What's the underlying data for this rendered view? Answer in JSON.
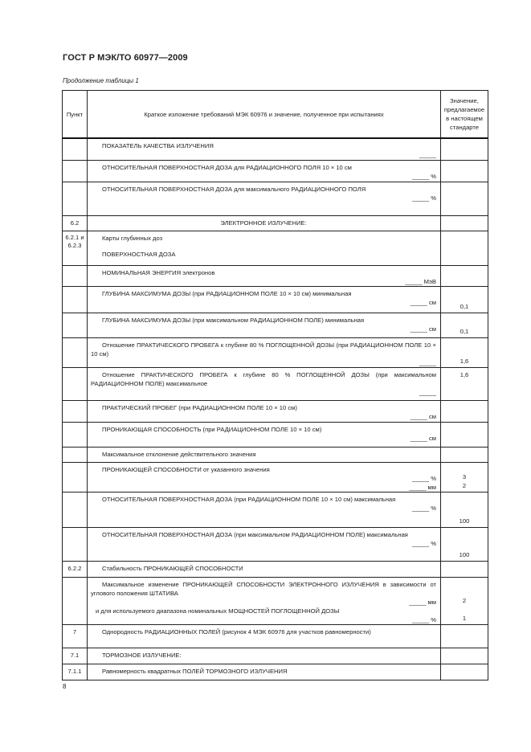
{
  "header": {
    "title": "ГОСТ Р МЭК/ТО 60977—2009",
    "caption": "Продолжение таблицы 1"
  },
  "table": {
    "columns": [
      "Пункт",
      "Краткое изложение требований МЭК 60976 и значение, полученное при испытаниях",
      "Значение, предлагаемое в настоящем стандарте"
    ],
    "rows": [
      {
        "punkt": "",
        "text": [
          "ПОКАЗАТЕЛЬ КАЧЕСТВА ИЗЛУЧЕНИЯ"
        ],
        "blanks": [
          "_____"
        ],
        "values": []
      },
      {
        "punkt": "",
        "text": [
          "ОТНОСИТЕЛЬНАЯ ПОВЕРХНОСТНАЯ ДОЗА для РАДИАЦИОННОГО ПОЛЯ 10 × 10 см"
        ],
        "blanks": [
          "_____ %"
        ],
        "values": []
      },
      {
        "punkt": "",
        "text": [
          "ОТНОСИТЕЛЬНАЯ ПОВЕРХНОСТНАЯ ДОЗА для максимального РАДИАЦИОННОГО ПОЛЯ"
        ],
        "blanks": [
          "_____ %"
        ],
        "values": []
      },
      {
        "punkt": "6.2",
        "text": [
          "ЭЛЕКТРОННОЕ ИЗЛУЧЕНИЕ:"
        ],
        "center": true,
        "blanks": [],
        "values": []
      },
      {
        "punkt": "6.2.1 и 6.2.3",
        "text": [
          "Карты глубинных доз",
          "ПОВЕРХНОСТНАЯ ДОЗА"
        ],
        "blanks": [],
        "values": []
      },
      {
        "punkt": "",
        "text": [
          "НОМИНАЛЬНАЯ ЭНЕРГИЯ электронов"
        ],
        "blanks": [
          "_____ МэВ"
        ],
        "values": []
      },
      {
        "punkt": "",
        "text": [
          "ГЛУБИНА МАКСИМУМА ДОЗЫ (при РАДИАЦИОННОМ ПОЛЕ 10 × 10 см) минимальная"
        ],
        "blanks": [
          "_____ см"
        ],
        "values": [
          "0,1"
        ]
      },
      {
        "punkt": "",
        "text": [
          "ГЛУБИНА МАКСИМУМА ДОЗЫ (при максимальном РАДИАЦИОННОМ ПОЛЕ) минимальная"
        ],
        "blanks": [
          "_____ см"
        ],
        "values": [
          "0,1"
        ]
      },
      {
        "punkt": "",
        "text": [
          "Отношение ПРАКТИЧЕСКОГО ПРОБЕГА к глубине 80 % ПОГЛОЩЕННОЙ ДОЗЫ (при РАДИАЦИОННОМ ПОЛЕ 10 × 10 см)"
        ],
        "blanks": [
          "_____"
        ],
        "values": [
          "1,6"
        ]
      },
      {
        "punkt": "",
        "text": [
          "Отношение ПРАКТИЧЕСКОГО ПРОБЕГА к глубине 80 % ПОГЛОЩЕННОЙ ДОЗЫ (при максимальном РАДИАЦИОННОМ ПОЛЕ) максимальное"
        ],
        "blanks": [
          "_____"
        ],
        "values": [
          "1,6"
        ],
        "valueTop": true
      },
      {
        "punkt": "",
        "text": [
          "ПРАКТИЧЕСКИЙ ПРОБЕГ (при РАДИАЦИОННОМ ПОЛЕ 10 × 10 см)"
        ],
        "blanks": [
          "_____ см"
        ],
        "values": []
      },
      {
        "punkt": "",
        "text": [
          "ПРОНИКАЮЩАЯ СПОСОБНОСТЬ (при РАДИАЦИОННОМ ПОЛЕ 10 × 10 см)"
        ],
        "blanks": [
          "_____ см"
        ],
        "values": []
      },
      {
        "punkt": "",
        "text": [
          "Максимальное отклонение действительного значения"
        ],
        "blanks": [],
        "values": []
      },
      {
        "punkt": "",
        "text": [
          "ПРОНИКАЮЩЕЙ СПОСОБНОСТИ от указанного значения"
        ],
        "blanks": [
          "_____ %",
          "_____ мм"
        ],
        "values": [
          "3",
          "2"
        ]
      },
      {
        "punkt": "",
        "text": [
          "ОТНОСИТЕЛЬНАЯ ПОВЕРХНОСТНАЯ ДОЗА (при РАДИАЦИОННОМ ПОЛЕ 10 × 10 см) максимальная"
        ],
        "blanks": [
          "_____ %"
        ],
        "values": [
          "100"
        ]
      },
      {
        "punkt": "",
        "text": [
          "ОТНОСИТЕЛЬНАЯ ПОВЕРХНОСТНАЯ ДОЗА (при максимальном РАДИАЦИОННОМ ПОЛЕ) максимальная"
        ],
        "blanks": [
          "_____ %"
        ],
        "values": [
          "100"
        ]
      },
      {
        "punkt": "6.2.2",
        "text": [
          "Стабильность ПРОНИКАЮЩЕЙ СПОСОБНОСТИ"
        ],
        "blanks": [],
        "values": []
      },
      {
        "punkt": "",
        "text": [
          "Максимальное изменение ПРОНИКАЮЩЕЙ СПОСОБНОСТИ ЭЛЕКТРОННОГО ИЗЛУЧЕНИЯ в зависимости от углового положения ШТАТИВА"
        ],
        "blanks": [
          "_____ мм",
          "и для используемого диапазона номинальных МОЩНОСТЕЙ ПОГЛОЩЕННОЙ ДОЗЫ",
          "_____ %"
        ],
        "values": [
          "2",
          "1"
        ]
      },
      {
        "punkt": "7",
        "text": [
          "Однородность РАДИАЦИОННЫХ ПОЛЕЙ (рисунок 4 МЭК 60976 для участков равномерности)"
        ],
        "blanks": [],
        "values": []
      },
      {
        "punkt": "7.1",
        "text": [
          "ТОРМОЗНОЕ ИЗЛУЧЕНИЕ:"
        ],
        "blanks": [],
        "values": []
      },
      {
        "punkt": "7.1.1",
        "text": [
          "Равномерность квадратных ПОЛЕЙ ТОРМОЗНОГО ИЗЛУЧЕНИЯ"
        ],
        "blanks": [],
        "values": []
      }
    ]
  },
  "footer": {
    "page_number": "8"
  }
}
